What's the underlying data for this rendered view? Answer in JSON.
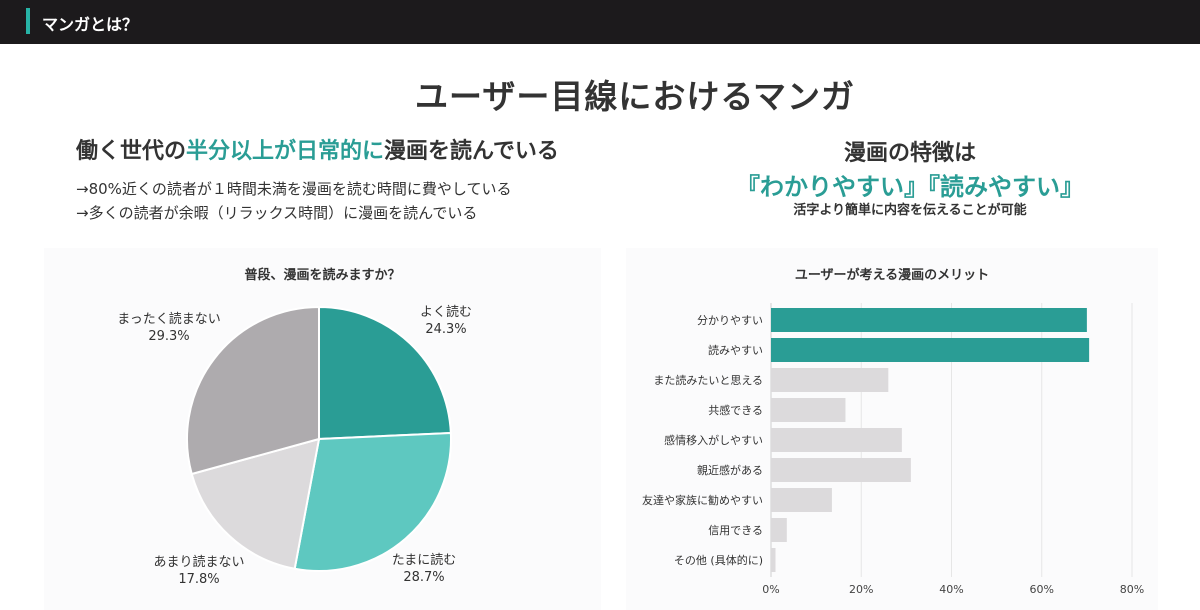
{
  "header": {
    "section_label": "マンガとは？"
  },
  "main_title": "ユーザー目線におけるマンガ",
  "left": {
    "headline_pre": "働く世代の",
    "headline_highlight": "半分以上が日常的に",
    "headline_post": "漫画を読んでいる",
    "bullets": [
      "→80%近くの読者が１時間未満を漫画を読む時間に費やしている",
      "→多くの読者が余暇（リラックス時間）に漫画を読んでいる"
    ]
  },
  "right": {
    "headline": "漫画の特徴は",
    "highlight": "『わかりやすい』『読みやすい』",
    "subtext": "活字より簡単に内容を伝えることが可能"
  },
  "colors": {
    "accent": "#27b3a6",
    "highlight_text": "#2a9d95",
    "pie": [
      "#2a9d95",
      "#5ec8c0",
      "#dcdadc",
      "#aeabae"
    ],
    "bar_highlight": "#2a9d95",
    "bar_default": "#dcdadc"
  },
  "chart_data": [
    {
      "type": "pie",
      "title": "普段、漫画を読みますか？",
      "labels": [
        "よく読む",
        "たまに読む",
        "あまり読まない",
        "まったく読まない"
      ],
      "values": [
        24.3,
        28.7,
        17.8,
        29.3
      ],
      "value_labels": [
        "24.3%",
        "28.7%",
        "17.8%",
        "29.3%"
      ]
    },
    {
      "type": "bar",
      "orientation": "horizontal",
      "title": "ユーザーが考える漫画のメリット",
      "categories": [
        "分かりやすい",
        "読みやすい",
        "また読みたいと思える",
        "共感できる",
        "感情移入がしやすい",
        "親近感がある",
        "友達や家族に勧めやすい",
        "信用できる",
        "その他 (具体的に)"
      ],
      "values": [
        70,
        70.5,
        26,
        16.5,
        29,
        31,
        13.5,
        3.5,
        1
      ],
      "highlighted": [
        true,
        true,
        false,
        false,
        false,
        false,
        false,
        false,
        false
      ],
      "xlim": [
        0,
        80
      ],
      "xticks": [
        0,
        20,
        40,
        60,
        80
      ],
      "xtick_labels": [
        "0%",
        "20%",
        "40%",
        "60%",
        "80%"
      ],
      "grid": true
    }
  ]
}
